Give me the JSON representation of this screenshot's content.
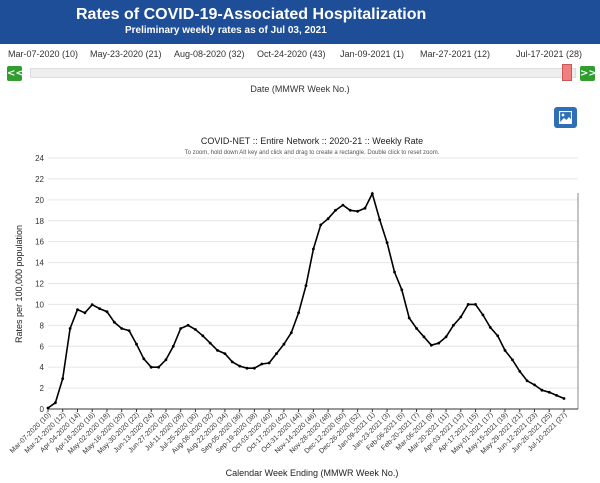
{
  "header": {
    "title": "Rates of COVID-19-Associated Hospitalization",
    "subtitle": "Preliminary weekly rates as of Jul 03, 2021"
  },
  "slider": {
    "labels": [
      "Mar-07-2020 (10)",
      "May-23-2020 (21)",
      "Aug-08-2020 (32)",
      "Oct-24-2020 (43)",
      "Jan-09-2021 (1)",
      "Mar-27-2021 (12)",
      "Jul-17-2021 (28)"
    ],
    "prev_label": "<<",
    "next_label": ">>",
    "caption": "Date (MMWR Week No.)",
    "selected_value": "Jul-17-2021 (28)"
  },
  "image_button_icon": "image-icon",
  "colors": {
    "header": "#1f4e99",
    "button_green": "#2f9e2f",
    "line": "#000000",
    "grid": "#e6e6e6"
  },
  "chart_data": {
    "type": "line",
    "title": "COVID-NET :: Entire Network :: 2020-21 :: Weekly Rate",
    "subtitle": "To zoom, hold down Alt key and click and drag to create a rectangle. Double click to reset zoom.",
    "xlabel": "Calendar Week Ending (MMWR Week No.)",
    "ylabel": "Rates per 100,000 population",
    "ylim": [
      0,
      24
    ],
    "yticks": [
      0,
      2,
      4,
      6,
      8,
      10,
      12,
      14,
      16,
      18,
      20,
      22,
      24
    ],
    "grid": true,
    "categories": [
      "Mar-07-2020 (10)",
      "Mar-14-2020 (11)",
      "Mar-21-2020 (12)",
      "Mar-28-2020 (13)",
      "Apr-04-2020 (14)",
      "Apr-11-2020 (15)",
      "Apr-18-2020 (16)",
      "Apr-25-2020 (17)",
      "May-02-2020 (18)",
      "May-09-2020 (19)",
      "May-16-2020 (20)",
      "May-23-2020 (21)",
      "May-30-2020 (22)",
      "Jun-06-2020 (23)",
      "Jun-13-2020 (24)",
      "Jun-20-2020 (25)",
      "Jun-27-2020 (26)",
      "Jul-04-2020 (27)",
      "Jul-11-2020 (28)",
      "Jul-18-2020 (29)",
      "Jul-25-2020 (30)",
      "Aug-01-2020 (31)",
      "Aug-08-2020 (32)",
      "Aug-15-2020 (33)",
      "Aug-22-2020 (34)",
      "Aug-29-2020 (35)",
      "Sep-05-2020 (36)",
      "Sep-12-2020 (37)",
      "Sep-19-2020 (38)",
      "Sep-26-2020 (39)",
      "Oct-03-2020 (40)",
      "Oct-10-2020 (41)",
      "Oct-17-2020 (42)",
      "Oct-24-2020 (43)",
      "Oct-31-2020 (44)",
      "Nov-07-2020 (45)",
      "Nov-14-2020 (46)",
      "Nov-21-2020 (47)",
      "Nov-28-2020 (48)",
      "Dec-05-2020 (49)",
      "Dec-12-2020 (50)",
      "Dec-19-2020 (51)",
      "Dec-26-2020 (52)",
      "Jan-02-2021 (53)",
      "Jan-09-2021 (1)",
      "Jan-16-2021 (2)",
      "Jan-23-2021 (3)",
      "Jan-30-2021 (4)",
      "Feb-06-2021 (5)",
      "Feb-13-2021 (6)",
      "Feb-20-2021 (7)",
      "Feb-27-2021 (8)",
      "Mar-06-2021 (9)",
      "Mar-13-2021 (10)",
      "Mar-20-2021 (11)",
      "Mar-27-2021 (12)",
      "Apr-03-2021 (13)",
      "Apr-10-2021 (14)",
      "Apr-17-2021 (15)",
      "Apr-24-2021 (16)",
      "May-01-2021 (17)",
      "May-08-2021 (18)",
      "May-15-2021 (19)",
      "May-22-2021 (20)",
      "May-29-2021 (21)",
      "Jun-05-2021 (22)",
      "Jun-12-2021 (23)",
      "Jun-19-2021 (24)",
      "Jun-26-2021 (25)",
      "Jul-03-2021 (26)",
      "Jul-10-2021 (27)"
    ],
    "tick_labels": [
      "Mar-07-2020 (10)",
      "Mar-21-2020 (12)",
      "Apr-04-2020 (14)",
      "Apr-18-2020 (16)",
      "May-02-2020 (18)",
      "May-16-2020 (20)",
      "May-30-2020 (22)",
      "Jun-13-2020 (24)",
      "Jun-27-2020 (26)",
      "Jul-11-2020 (28)",
      "Jul-25-2020 (30)",
      "Aug-08-2020 (32)",
      "Aug-22-2020 (34)",
      "Sep-05-2020 (36)",
      "Sep-19-2020 (38)",
      "Oct-03-2020 (40)",
      "Oct-17-2020 (42)",
      "Oct-31-2020 (44)",
      "Nov-14-2020 (46)",
      "Nov-28-2020 (48)",
      "Dec-12-2020 (50)",
      "Dec-26-2020 (52)",
      "Jan-09-2021 (1)",
      "Jan-23-2021 (3)",
      "Feb-06-2021 (5)",
      "Feb-20-2021 (7)",
      "Mar-06-2021 (9)",
      "Mar-20-2021 (11)",
      "Apr-03-2021 (13)",
      "Apr-17-2021 (15)",
      "May-01-2021 (17)",
      "May-15-2021 (19)",
      "May-29-2021 (21)",
      "Jun-12-2021 (23)",
      "Jun-26-2021 (25)",
      "Jul-10-2021 (27)"
    ],
    "series": [
      {
        "values": [
          0.1,
          0.6,
          2.9,
          7.7,
          9.5,
          9.2,
          9.97,
          9.6,
          9.3,
          8.3,
          7.7,
          7.5,
          6.2,
          4.8,
          4.0,
          4.0,
          4.7,
          6.0,
          7.7,
          8.0,
          7.6,
          7.0,
          6.3,
          5.6,
          5.3,
          4.5,
          4.1,
          3.9,
          3.9,
          4.3,
          4.4,
          5.3,
          6.2,
          7.3,
          9.2,
          11.8,
          15.3,
          17.6,
          18.2,
          19.0,
          19.5,
          19.0,
          18.9,
          19.2,
          20.6,
          18.1,
          15.9,
          13.1,
          11.4,
          8.7,
          7.7,
          6.9,
          6.1,
          6.3,
          6.9,
          8.0,
          8.8,
          10.0,
          10.0,
          9.0,
          7.8,
          7.0,
          5.6,
          4.7,
          3.6,
          2.7,
          2.3,
          1.8,
          1.6,
          1.3,
          1.0
        ]
      }
    ]
  }
}
